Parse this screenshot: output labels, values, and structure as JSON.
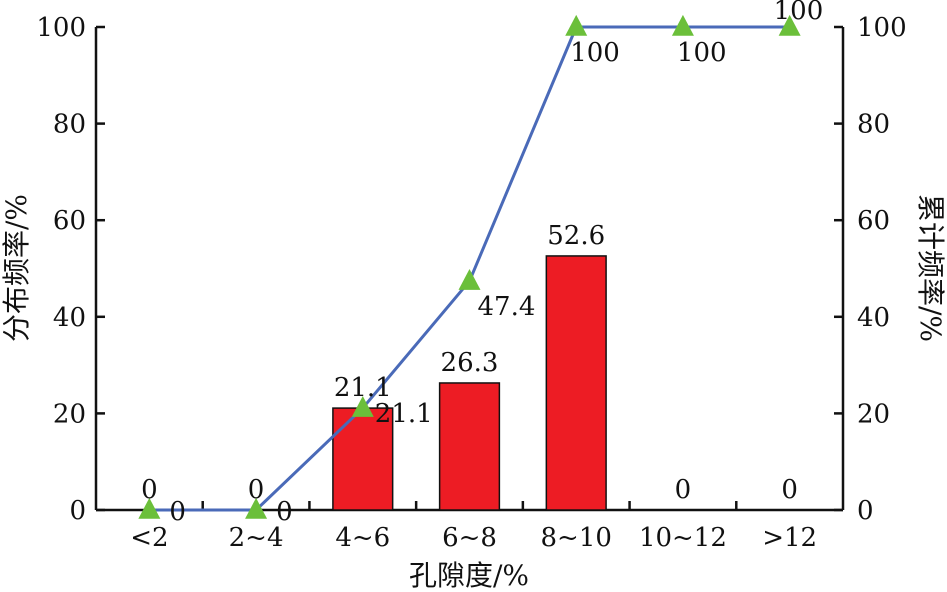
{
  "chart_data": {
    "type": "bar",
    "categories": [
      "<2",
      "2~4",
      "4~6",
      "6~8",
      "8~10",
      "10~12",
      ">12"
    ],
    "series": [
      {
        "name": "",
        "type": "bar",
        "axis": "left",
        "values": [
          0,
          0,
          21.1,
          26.3,
          52.6,
          0,
          0
        ]
      },
      {
        "name": "",
        "type": "line",
        "axis": "right",
        "marker": "triangle",
        "values": [
          0,
          0,
          21.1,
          47.4,
          100,
          100,
          100
        ]
      }
    ],
    "bar_labels": [
      "0",
      "0",
      "21.1",
      "26.3",
      "52.6",
      "0",
      "0"
    ],
    "line_labels": [
      "0",
      "0",
      "21.1",
      "47.4",
      "100",
      "100",
      "100"
    ],
    "title": "",
    "xlabel": "孔隙度/%",
    "ylabel": "分布频率/%",
    "y2label": "累计频率/%",
    "ylim": [
      0,
      100
    ],
    "y2lim": [
      0,
      100
    ],
    "yticks": [
      "0",
      "20",
      "40",
      "60",
      "80",
      "100"
    ],
    "y2ticks": [
      "0",
      "20",
      "40",
      "60",
      "80",
      "100"
    ],
    "grid": false,
    "legend": "none",
    "colors": {
      "bar": "#ed1c24",
      "line": "#4a6ab8",
      "marker": "#6bbf3a",
      "axis": "#111111"
    }
  }
}
